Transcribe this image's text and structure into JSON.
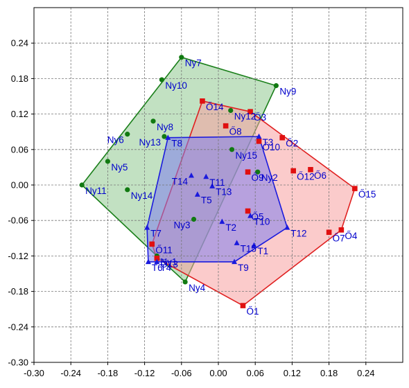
{
  "chart_data": {
    "type": "scatter",
    "xlim": [
      -0.3,
      0.3
    ],
    "ylim": [
      -0.3,
      0.3
    ],
    "grid": true,
    "grid_style": "dashed",
    "x_ticks": [
      -0.3,
      -0.24,
      -0.18,
      -0.12,
      -0.06,
      0.0,
      0.06,
      0.12,
      0.18,
      0.24
    ],
    "x_tick_labels": [
      "-0.30",
      "-0.24",
      "-0.18",
      "-0.12",
      "-0.06",
      "0.00",
      "0.06",
      "0.12",
      "0.18",
      "0.24"
    ],
    "y_ticks": [
      -0.3,
      -0.24,
      -0.18,
      -0.12,
      -0.06,
      0.0,
      0.06,
      0.12,
      0.18,
      0.24
    ],
    "y_tick_labels": [
      "-0.30",
      "-0.24",
      "-0.18",
      "-0.12",
      "-0.06",
      "0.00",
      "0.06",
      "0.12",
      "0.18",
      "0.24"
    ],
    "label_color": "#0000cc",
    "series": [
      {
        "marker": "circle",
        "color": "#117a11",
        "hull_fill": "#8fc98f",
        "hull_stroke": "#1a7f1a",
        "hull": [
          "Ny11",
          "Ny7",
          "Ny9",
          "Ny4",
          "Ny1"
        ],
        "points": [
          {
            "label": "Ny1",
            "x": -0.1,
            "y": -0.12
          },
          {
            "label": "Ny2",
            "x": 0.064,
            "y": 0.022
          },
          {
            "label": "Ny3",
            "x": -0.04,
            "y": -0.058
          },
          {
            "label": "Ny4",
            "x": -0.054,
            "y": -0.164
          },
          {
            "label": "Ny5",
            "x": -0.18,
            "y": 0.04
          },
          {
            "label": "Ny6",
            "x": -0.148,
            "y": 0.086
          },
          {
            "label": "Ny7",
            "x": -0.06,
            "y": 0.216
          },
          {
            "label": "Ny8",
            "x": -0.106,
            "y": 0.108
          },
          {
            "label": "Ny9",
            "x": 0.094,
            "y": 0.168
          },
          {
            "label": "Ny10",
            "x": -0.092,
            "y": 0.178
          },
          {
            "label": "Ny11",
            "x": -0.222,
            "y": 0.0
          },
          {
            "label": "Ny12",
            "x": 0.02,
            "y": 0.126
          },
          {
            "label": "Ny13",
            "x": -0.088,
            "y": 0.082
          },
          {
            "label": "Ny14",
            "x": -0.148,
            "y": -0.008
          },
          {
            "label": "Ny15",
            "x": 0.022,
            "y": 0.06
          }
        ]
      },
      {
        "marker": "square",
        "color": "#e01010",
        "hull_fill": "#f7a0a0",
        "hull_stroke": "#e02020",
        "hull": [
          "Ő14",
          "Ő3",
          "Ő15",
          "Ő4",
          "Ő1",
          "Ő13",
          "Ő11"
        ],
        "points": [
          {
            "label": "Ő1",
            "x": 0.04,
            "y": -0.204
          },
          {
            "label": "Ő2",
            "x": 0.104,
            "y": 0.08
          },
          {
            "label": "Ő3",
            "x": 0.052,
            "y": 0.124
          },
          {
            "label": "Ő4",
            "x": 0.2,
            "y": -0.076
          },
          {
            "label": "Ő5",
            "x": 0.048,
            "y": -0.044
          },
          {
            "label": "Ő6",
            "x": 0.15,
            "y": 0.026
          },
          {
            "label": "Ő7",
            "x": 0.18,
            "y": -0.08
          },
          {
            "label": "Ő8",
            "x": 0.012,
            "y": 0.1
          },
          {
            "label": "Ő9",
            "x": 0.048,
            "y": 0.022
          },
          {
            "label": "Ő10",
            "x": 0.066,
            "y": 0.074
          },
          {
            "label": "Ő11",
            "x": -0.108,
            "y": -0.1
          },
          {
            "label": "Ő12",
            "x": 0.122,
            "y": 0.024
          },
          {
            "label": "Ő13",
            "x": -0.1,
            "y": -0.124
          },
          {
            "label": "Ő14",
            "x": -0.026,
            "y": 0.142
          },
          {
            "label": "Ő15",
            "x": 0.222,
            "y": -0.006
          }
        ]
      },
      {
        "marker": "triangle",
        "color": "#1a1add",
        "hull_fill": "#8080ee",
        "hull_stroke": "#1a1add",
        "hull": [
          "T8",
          "T3",
          "T12",
          "T9",
          "T6",
          "T7"
        ],
        "points": [
          {
            "label": "T1",
            "x": 0.058,
            "y": -0.102
          },
          {
            "label": "T2",
            "x": 0.006,
            "y": -0.062
          },
          {
            "label": "T3",
            "x": 0.066,
            "y": 0.082
          },
          {
            "label": "T4",
            "x": -0.1,
            "y": -0.13
          },
          {
            "label": "T5",
            "x": -0.034,
            "y": -0.016
          },
          {
            "label": "T6",
            "x": -0.114,
            "y": -0.13
          },
          {
            "label": "T7",
            "x": -0.116,
            "y": -0.072
          },
          {
            "label": "T8",
            "x": -0.082,
            "y": 0.08
          },
          {
            "label": "T9",
            "x": 0.026,
            "y": -0.13
          },
          {
            "label": "T10",
            "x": 0.052,
            "y": -0.052
          },
          {
            "label": "T11",
            "x": -0.02,
            "y": 0.014
          },
          {
            "label": "T12",
            "x": 0.112,
            "y": -0.072
          },
          {
            "label": "T13",
            "x": -0.01,
            "y": -0.002
          },
          {
            "label": "T14",
            "x": -0.044,
            "y": 0.016
          },
          {
            "label": "T15",
            "x": 0.03,
            "y": -0.098
          }
        ]
      }
    ]
  }
}
